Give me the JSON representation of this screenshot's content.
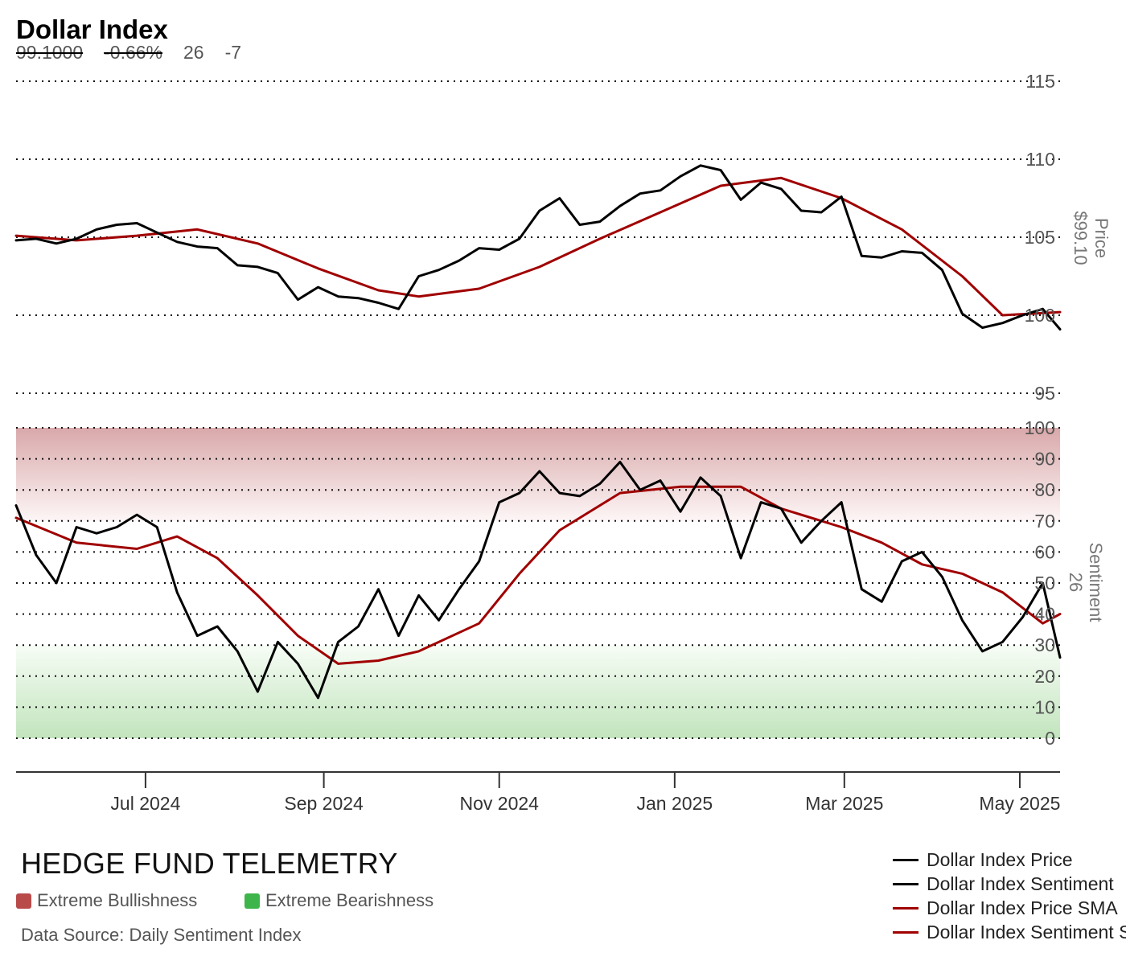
{
  "title": "Dollar Index",
  "stats": {
    "price": "99.1000",
    "change_pct": "-0.66%",
    "sentiment": "26",
    "sentiment_change": "-7"
  },
  "brand": "HEDGE FUND TELEMETRY",
  "zones": [
    {
      "label": "Extreme Bullishness",
      "color": "#b94a4a"
    },
    {
      "label": "Extreme Bearishness",
      "color": "#3db54a"
    }
  ],
  "source": "Data Source: Daily Sentiment Index",
  "legend": [
    {
      "label": "Dollar Index Price",
      "color": "#000000"
    },
    {
      "label": "Dollar Index Sentiment",
      "color": "#000000"
    },
    {
      "label": "Dollar Index Price SMA",
      "color": "#a00000"
    },
    {
      "label": "Dollar Index Sentiment SMA",
      "color": "#a00000"
    }
  ],
  "colors": {
    "line": "#000000",
    "sma": "#a00000",
    "bull_zone": "#c98a8a",
    "bear_zone": "#b7e0b2"
  },
  "chart_data": [
    {
      "type": "line",
      "panel": "price",
      "y_title": "Price",
      "y_subtitle": "$99.10",
      "ylim": [
        95,
        115
      ],
      "yticks": [
        95,
        100,
        105,
        110,
        115
      ],
      "grid": true,
      "x_start": "2024-05-17",
      "x_end": "2025-05-15",
      "xticks": [
        {
          "date": "2024-07-01",
          "label": "Jul 2024"
        },
        {
          "date": "2024-09-01",
          "label": "Sep 2024"
        },
        {
          "date": "2024-11-01",
          "label": "Nov 2024"
        },
        {
          "date": "2025-01-01",
          "label": "Jan 2025"
        },
        {
          "date": "2025-03-01",
          "label": "Mar 2025"
        },
        {
          "date": "2025-05-01",
          "label": "May 2025"
        }
      ],
      "series": [
        {
          "name": "Dollar Index Price",
          "points": [
            [
              "2024-05-17",
              104.8
            ],
            [
              "2024-05-24",
              104.9
            ],
            [
              "2024-05-31",
              104.6
            ],
            [
              "2024-06-07",
              104.9
            ],
            [
              "2024-06-14",
              105.5
            ],
            [
              "2024-06-21",
              105.8
            ],
            [
              "2024-06-28",
              105.9
            ],
            [
              "2024-07-05",
              105.3
            ],
            [
              "2024-07-12",
              104.7
            ],
            [
              "2024-07-19",
              104.4
            ],
            [
              "2024-07-26",
              104.3
            ],
            [
              "2024-08-02",
              103.2
            ],
            [
              "2024-08-09",
              103.1
            ],
            [
              "2024-08-16",
              102.7
            ],
            [
              "2024-08-23",
              101.0
            ],
            [
              "2024-08-30",
              101.8
            ],
            [
              "2024-09-06",
              101.2
            ],
            [
              "2024-09-13",
              101.1
            ],
            [
              "2024-09-20",
              100.8
            ],
            [
              "2024-09-27",
              100.4
            ],
            [
              "2024-10-04",
              102.5
            ],
            [
              "2024-10-11",
              102.9
            ],
            [
              "2024-10-18",
              103.5
            ],
            [
              "2024-10-25",
              104.3
            ],
            [
              "2024-11-01",
              104.2
            ],
            [
              "2024-11-08",
              104.9
            ],
            [
              "2024-11-15",
              106.7
            ],
            [
              "2024-11-22",
              107.5
            ],
            [
              "2024-11-29",
              105.8
            ],
            [
              "2024-12-06",
              106.0
            ],
            [
              "2024-12-13",
              107.0
            ],
            [
              "2024-12-20",
              107.8
            ],
            [
              "2024-12-27",
              108.0
            ],
            [
              "2025-01-03",
              108.9
            ],
            [
              "2025-01-10",
              109.6
            ],
            [
              "2025-01-17",
              109.3
            ],
            [
              "2025-01-24",
              107.4
            ],
            [
              "2025-01-31",
              108.5
            ],
            [
              "2025-02-07",
              108.1
            ],
            [
              "2025-02-14",
              106.7
            ],
            [
              "2025-02-21",
              106.6
            ],
            [
              "2025-02-28",
              107.6
            ],
            [
              "2025-03-07",
              103.8
            ],
            [
              "2025-03-14",
              103.7
            ],
            [
              "2025-03-21",
              104.1
            ],
            [
              "2025-03-28",
              104.0
            ],
            [
              "2025-04-04",
              102.9
            ],
            [
              "2025-04-11",
              100.1
            ],
            [
              "2025-04-18",
              99.2
            ],
            [
              "2025-04-25",
              99.5
            ],
            [
              "2025-05-02",
              100.0
            ],
            [
              "2025-05-09",
              100.4
            ],
            [
              "2025-05-15",
              99.1
            ]
          ]
        },
        {
          "name": "Dollar Index Price SMA",
          "points": [
            [
              "2024-05-17",
              105.1
            ],
            [
              "2024-06-07",
              104.8
            ],
            [
              "2024-06-28",
              105.1
            ],
            [
              "2024-07-19",
              105.5
            ],
            [
              "2024-08-09",
              104.6
            ],
            [
              "2024-08-30",
              103.0
            ],
            [
              "2024-09-20",
              101.6
            ],
            [
              "2024-10-04",
              101.2
            ],
            [
              "2024-10-25",
              101.7
            ],
            [
              "2024-11-15",
              103.1
            ],
            [
              "2024-12-06",
              104.9
            ],
            [
              "2024-12-27",
              106.6
            ],
            [
              "2025-01-17",
              108.3
            ],
            [
              "2025-02-07",
              108.8
            ],
            [
              "2025-02-28",
              107.5
            ],
            [
              "2025-03-21",
              105.5
            ],
            [
              "2025-04-11",
              102.5
            ],
            [
              "2025-04-25",
              100.0
            ],
            [
              "2025-05-15",
              100.2
            ]
          ]
        }
      ]
    },
    {
      "type": "line",
      "panel": "sentiment",
      "y_title": "Sentiment",
      "y_subtitle": "26",
      "ylim": [
        0,
        100
      ],
      "yticks": [
        0,
        10,
        20,
        30,
        40,
        50,
        60,
        70,
        80,
        90,
        100
      ],
      "grid": true,
      "zones": [
        {
          "name": "Extreme Bullishness",
          "from": 70,
          "to": 100
        },
        {
          "name": "Extreme Bearishness",
          "from": 0,
          "to": 30
        }
      ],
      "series": [
        {
          "name": "Dollar Index Sentiment",
          "points": [
            [
              "2024-05-17",
              75
            ],
            [
              "2024-05-24",
              59
            ],
            [
              "2024-05-31",
              50
            ],
            [
              "2024-06-07",
              68
            ],
            [
              "2024-06-14",
              66
            ],
            [
              "2024-06-21",
              68
            ],
            [
              "2024-06-28",
              72
            ],
            [
              "2024-07-05",
              68
            ],
            [
              "2024-07-12",
              47
            ],
            [
              "2024-07-19",
              33
            ],
            [
              "2024-07-26",
              36
            ],
            [
              "2024-08-02",
              28
            ],
            [
              "2024-08-09",
              15
            ],
            [
              "2024-08-16",
              31
            ],
            [
              "2024-08-23",
              24
            ],
            [
              "2024-08-30",
              13
            ],
            [
              "2024-09-06",
              31
            ],
            [
              "2024-09-13",
              36
            ],
            [
              "2024-09-20",
              48
            ],
            [
              "2024-09-27",
              33
            ],
            [
              "2024-10-04",
              46
            ],
            [
              "2024-10-11",
              38
            ],
            [
              "2024-10-18",
              48
            ],
            [
              "2024-10-25",
              57
            ],
            [
              "2024-11-01",
              76
            ],
            [
              "2024-11-08",
              79
            ],
            [
              "2024-11-15",
              86
            ],
            [
              "2024-11-22",
              79
            ],
            [
              "2024-11-29",
              78
            ],
            [
              "2024-12-06",
              82
            ],
            [
              "2024-12-13",
              89
            ],
            [
              "2024-12-20",
              80
            ],
            [
              "2024-12-27",
              83
            ],
            [
              "2025-01-03",
              73
            ],
            [
              "2025-01-10",
              84
            ],
            [
              "2025-01-17",
              78
            ],
            [
              "2025-01-24",
              58
            ],
            [
              "2025-01-31",
              76
            ],
            [
              "2025-02-07",
              74
            ],
            [
              "2025-02-14",
              63
            ],
            [
              "2025-02-21",
              70
            ],
            [
              "2025-02-28",
              76
            ],
            [
              "2025-03-07",
              48
            ],
            [
              "2025-03-14",
              44
            ],
            [
              "2025-03-21",
              57
            ],
            [
              "2025-03-28",
              60
            ],
            [
              "2025-04-04",
              52
            ],
            [
              "2025-04-11",
              38
            ],
            [
              "2025-04-18",
              28
            ],
            [
              "2025-04-25",
              31
            ],
            [
              "2025-05-02",
              39
            ],
            [
              "2025-05-09",
              50
            ],
            [
              "2025-05-15",
              26
            ]
          ]
        },
        {
          "name": "Dollar Index Sentiment SMA",
          "points": [
            [
              "2024-05-17",
              71
            ],
            [
              "2024-06-07",
              63
            ],
            [
              "2024-06-28",
              61
            ],
            [
              "2024-07-12",
              65
            ],
            [
              "2024-07-26",
              58
            ],
            [
              "2024-08-09",
              46
            ],
            [
              "2024-08-23",
              33
            ],
            [
              "2024-09-06",
              24
            ],
            [
              "2024-09-20",
              25
            ],
            [
              "2024-10-04",
              28
            ],
            [
              "2024-10-25",
              37
            ],
            [
              "2024-11-08",
              53
            ],
            [
              "2024-11-22",
              67
            ],
            [
              "2024-12-13",
              79
            ],
            [
              "2025-01-03",
              81
            ],
            [
              "2025-01-24",
              81
            ],
            [
              "2025-02-07",
              74
            ],
            [
              "2025-02-28",
              68
            ],
            [
              "2025-03-14",
              63
            ],
            [
              "2025-03-28",
              56
            ],
            [
              "2025-04-11",
              53
            ],
            [
              "2025-04-25",
              47
            ],
            [
              "2025-05-09",
              37
            ],
            [
              "2025-05-15",
              40
            ]
          ]
        }
      ]
    }
  ]
}
